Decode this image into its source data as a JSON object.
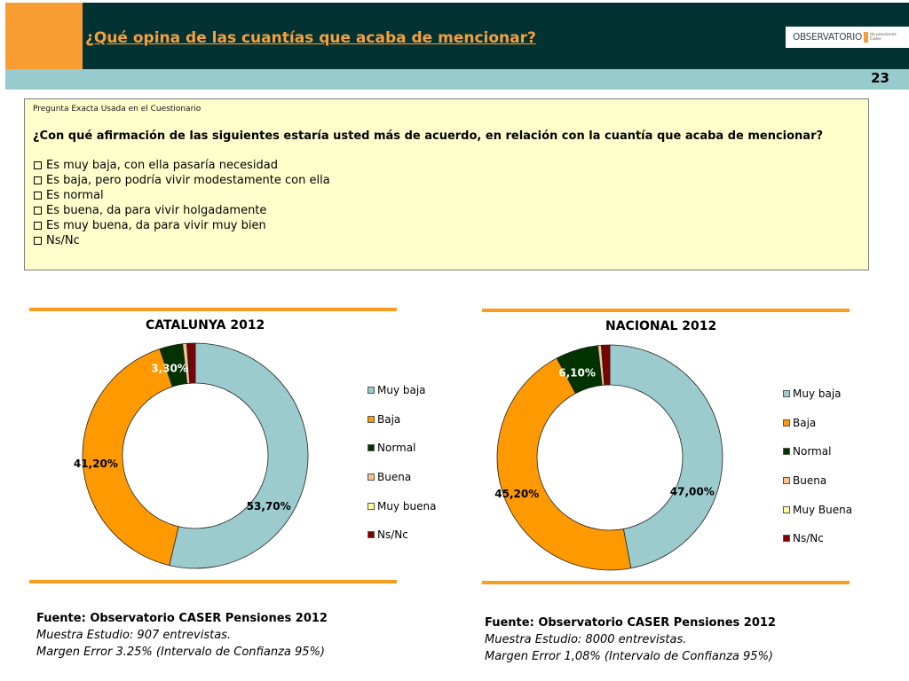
{
  "header": {
    "title": "¿Qué opina de las cuantías que acaba de mencionar?",
    "logo_text": "OBSERVATORIO",
    "logo_sub_line1": "de pensiones",
    "logo_sub_line2": "Caser",
    "page_number": "23",
    "colors": {
      "orange": "#f99d33",
      "dark": "#033233",
      "band": "#98cbcd"
    }
  },
  "question_box": {
    "caption": "Pregunta Exacta Usada en el Cuestionario",
    "question": "¿Con qué afirmación de las siguientes estaría usted más de acuerdo, en relación con la cuantía que acaba de mencionar?",
    "options": [
      "Es muy baja, con ella pasaría necesidad",
      "Es baja, pero podría vivir modestamente con ella",
      "Es normal",
      "Es buena, da para vivir holgadamente",
      "Es muy buena, da para vivir muy bien",
      "Ns/Nc"
    ]
  },
  "chart_data": [
    {
      "type": "pie",
      "variant": "donut",
      "title": "CATALUNYA 2012",
      "categories": [
        "Muy baja",
        "Baja",
        "Normal",
        "Buena",
        "Muy buena",
        "Ns/Nc"
      ],
      "values": [
        53.7,
        41.2,
        3.3,
        0.6,
        0.1,
        1.1
      ],
      "data_labels": [
        "53,70%",
        "41,20%",
        "3,30%",
        "",
        "",
        ""
      ],
      "colors": [
        "#9bcbcd",
        "#ff9900",
        "#003300",
        "#fac090",
        "#ffff99",
        "#800000"
      ],
      "legend_position": "right",
      "unit": "%"
    },
    {
      "type": "pie",
      "variant": "donut",
      "title": "NACIONAL 2012",
      "categories": [
        "Muy baja",
        "Baja",
        "Normal",
        "Buena",
        "Muy Buena",
        "Ns/Nc"
      ],
      "values": [
        47.0,
        45.2,
        6.1,
        0.5,
        0.1,
        1.1
      ],
      "data_labels": [
        "47,00%",
        "45,20%",
        "6,10%",
        "",
        "",
        ""
      ],
      "colors": [
        "#9bcbcd",
        "#ff9900",
        "#003300",
        "#fac090",
        "#ffff99",
        "#800000"
      ],
      "legend_position": "right",
      "unit": "%"
    }
  ],
  "sources": [
    {
      "source": "Fuente: Observatorio CASER Pensiones 2012",
      "sample": "Muestra Estudio: 907 entrevistas.",
      "margin": "Margen Error 3.25% (Intervalo de Confianza 95%)"
    },
    {
      "source": "Fuente: Observatorio CASER Pensiones 2012",
      "sample": "Muestra Estudio: 8000 entrevistas.",
      "margin": "Margen Error 1,08% (Intervalo de Confianza 95%)"
    }
  ]
}
